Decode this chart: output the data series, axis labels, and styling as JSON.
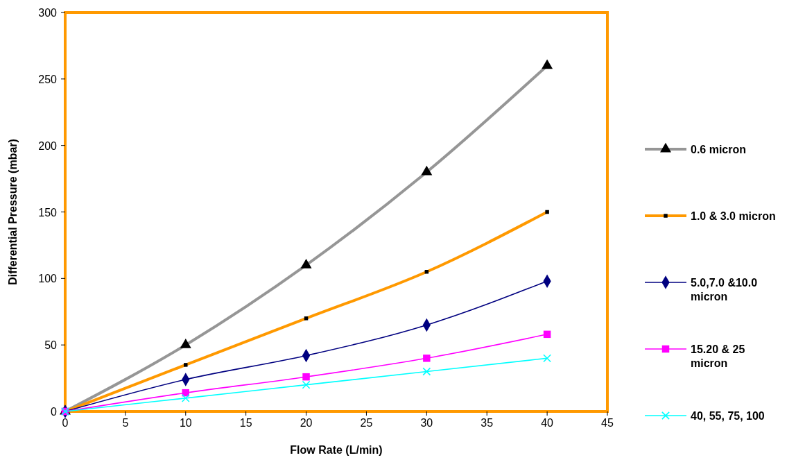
{
  "chart_data": {
    "type": "line",
    "xlabel": "Flow Rate (L/min)",
    "ylabel": "Differential Pressure (mbar)",
    "x": [
      0,
      10,
      20,
      30,
      40
    ],
    "xlim": [
      0,
      45
    ],
    "xticks": [
      0,
      5,
      10,
      15,
      20,
      25,
      30,
      35,
      40,
      45
    ],
    "ylim": [
      0,
      300
    ],
    "yticks": [
      0,
      50,
      100,
      150,
      200,
      250,
      300
    ],
    "grid": false,
    "legend": "right",
    "series": [
      {
        "name": "0.6 micron",
        "color": "#969696",
        "marker": "triangle",
        "values": [
          0,
          50,
          110,
          180,
          260
        ]
      },
      {
        "name": "1.0 & 3.0 micron",
        "color": "#ff9900",
        "marker": "square",
        "values": [
          0,
          35,
          70,
          105,
          150
        ]
      },
      {
        "name": "5.0,7.0 &10.0 micron",
        "color": "#000080",
        "marker": "diamond",
        "values": [
          0,
          24,
          42,
          65,
          98
        ]
      },
      {
        "name": "15.20 & 25 micron",
        "color": "#ff00ff",
        "marker": "square",
        "values": [
          0,
          14,
          26,
          40,
          58
        ]
      },
      {
        "name": "40, 55, 75, 100",
        "color": "#00ffff",
        "marker": "cross",
        "values": [
          0,
          10,
          20,
          30,
          40
        ]
      }
    ]
  }
}
